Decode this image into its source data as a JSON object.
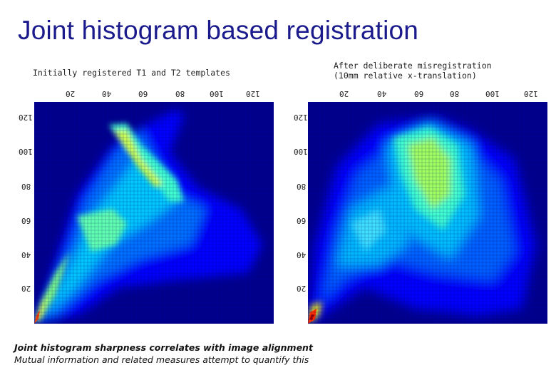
{
  "slide": {
    "title": "Joint histogram based registration",
    "left_caption": "Initially registered T1 and T2 templates",
    "right_caption_line1": "After deliberate misregistration",
    "right_caption_line2": "(10mm relative x-translation)",
    "footer_line1": "Joint histogram sharpness correlates with image alignment",
    "footer_line2": "Mutual information and related measures attempt to quantify this"
  },
  "left_panel": {
    "x_ticks": [
      "20",
      "40",
      "60",
      "80",
      "100",
      "120"
    ],
    "y_ticks": [
      "120",
      "100",
      "80",
      "60",
      "40",
      "20"
    ]
  },
  "right_panel": {
    "x_ticks": [
      "20",
      "40",
      "60",
      "80",
      "100",
      "120"
    ],
    "y_ticks": [
      "120",
      "100",
      "80",
      "60",
      "40",
      "20"
    ]
  },
  "colors": {
    "background": "#00008f",
    "colormap": [
      "#00008f",
      "#0000ff",
      "#0080ff",
      "#00ffff",
      "#80ff80",
      "#ffff00",
      "#ff8000",
      "#ff0000",
      "#800000"
    ]
  }
}
